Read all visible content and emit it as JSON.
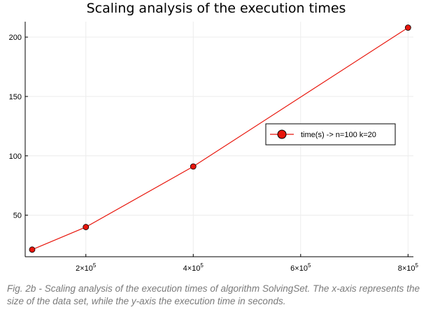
{
  "chart_data": {
    "type": "line",
    "title": "Scaling analysis of the execution times",
    "xlabel": "",
    "ylabel": "",
    "xlim": [
      87000,
      810000
    ],
    "ylim": [
      15,
      213
    ],
    "grid": true,
    "legend_position": "right",
    "x_ticks": [
      {
        "value": 200000,
        "base": "2×10",
        "exp": "5"
      },
      {
        "value": 400000,
        "base": "4×10",
        "exp": "5"
      },
      {
        "value": 600000,
        "base": "6×10",
        "exp": "5"
      },
      {
        "value": 800000,
        "base": "8×10",
        "exp": "5"
      }
    ],
    "y_ticks": [
      {
        "value": 50,
        "label": "50"
      },
      {
        "value": 100,
        "label": "100"
      },
      {
        "value": 150,
        "label": "150"
      },
      {
        "value": 200,
        "label": "200"
      }
    ],
    "series": [
      {
        "name": "time(s) -> n=100 k=20",
        "color": "#e8160c",
        "x": [
          100000,
          200000,
          400000,
          800000
        ],
        "y": [
          21,
          40,
          91,
          208
        ]
      }
    ]
  },
  "caption": "Fig. 2b - Scaling analysis of the execution times of algorithm SolvingSet. The x-axis represents the size of the data set, while the y-axis the execution time in seconds."
}
